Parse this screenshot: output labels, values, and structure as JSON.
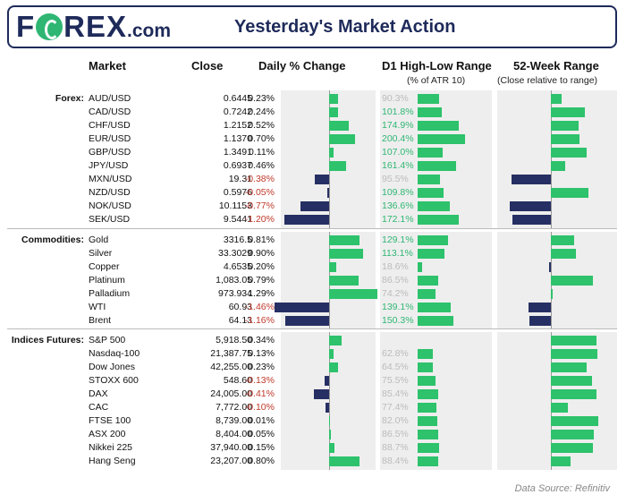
{
  "header": {
    "logo_pre": "F",
    "logo_post": "REX",
    "logo_suffix": ".com",
    "title": "Yesterday's Market Action"
  },
  "columns": {
    "market": "Market",
    "close": "Close",
    "daily": "Daily % Change",
    "range": "D1 High-Low Range",
    "range_sub": "(% of ATR 10)",
    "week52": "52-Week Range",
    "week52_sub": "(Close relative to range)"
  },
  "groups": [
    {
      "label": "Forex:",
      "rows": [
        {
          "market": "AUD/USD",
          "close": "0.6445",
          "change": "0.23%",
          "change_value": 0.23,
          "range": "90.3%",
          "range_value": 90.3,
          "week52": 0.2
        },
        {
          "market": "CAD/USD",
          "close": "0.7242",
          "change": "0.24%",
          "change_value": 0.24,
          "range": "101.8%",
          "range_value": 101.8,
          "week52": 0.62
        },
        {
          "market": "CHF/USD",
          "close": "1.2152",
          "change": "0.52%",
          "change_value": 0.52,
          "range": "174.9%",
          "range_value": 174.9,
          "week52": 0.5
        },
        {
          "market": "EUR/USD",
          "close": "1.1370",
          "change": "0.70%",
          "change_value": 0.7,
          "range": "200.4%",
          "range_value": 200.4,
          "week52": 0.52
        },
        {
          "market": "GBP/USD",
          "close": "1.3491",
          "change": "0.11%",
          "change_value": 0.11,
          "range": "107.0%",
          "range_value": 107.0,
          "week52": 0.64
        },
        {
          "market": "JPY/USD",
          "close": "0.6937",
          "change": "0.46%",
          "change_value": 0.46,
          "range": "161.4%",
          "range_value": 161.4,
          "week52": 0.26
        },
        {
          "market": "MXN/USD",
          "close": "19.31",
          "change": "-0.38%",
          "change_value": -0.38,
          "range": "95.5%",
          "range_value": 95.5,
          "week52": -0.71
        },
        {
          "market": "NZD/USD",
          "close": "0.5976",
          "change": "-0.05%",
          "change_value": -0.05,
          "range": "109.8%",
          "range_value": 109.8,
          "week52": 0.67
        },
        {
          "market": "NOK/USD",
          "close": "10.1153",
          "change": "-0.77%",
          "change_value": -0.77,
          "range": "136.6%",
          "range_value": 136.6,
          "week52": -0.74
        },
        {
          "market": "SEK/USD",
          "close": "9.5441",
          "change": "-1.20%",
          "change_value": -1.2,
          "range": "172.1%",
          "range_value": 172.1,
          "week52": -0.7
        }
      ]
    },
    {
      "label": "Commodities:",
      "rows": [
        {
          "market": "Gold",
          "close": "3316.5",
          "change": "0.81%",
          "change_value": 0.81,
          "range": "129.1%",
          "range_value": 129.1,
          "week52": 0.42
        },
        {
          "market": "Silver",
          "close": "33.3029",
          "change": "0.90%",
          "change_value": 0.9,
          "range": "113.1%",
          "range_value": 113.1,
          "week52": 0.45
        },
        {
          "market": "Copper",
          "close": "4.6535",
          "change": "0.20%",
          "change_value": 0.2,
          "range": "18.6%",
          "range_value": 18.6,
          "week52": -0.04
        },
        {
          "market": "Platinum",
          "close": "1,083.05",
          "change": "0.79%",
          "change_value": 0.79,
          "range": "86.5%",
          "range_value": 86.5,
          "week52": 0.75
        },
        {
          "market": "Palladium",
          "close": "973.934",
          "change": "1.29%",
          "change_value": 1.29,
          "range": "74.2%",
          "range_value": 74.2,
          "week52": 0.01
        },
        {
          "market": "WTI",
          "close": "60.93",
          "change": "-1.46%",
          "change_value": -1.46,
          "range": "139.1%",
          "range_value": 139.1,
          "week52": -0.4
        },
        {
          "market": "Brent",
          "close": "64.13",
          "change": "-1.16%",
          "change_value": -1.16,
          "range": "150.3%",
          "range_value": 150.3,
          "week52": -0.38
        }
      ]
    },
    {
      "label": "Indices Futures:",
      "rows": [
        {
          "market": "S&P 500",
          "close": "5,918.50",
          "change": "0.34%",
          "change_value": 0.34,
          "range": "",
          "range_value": 0,
          "week52": 0.82
        },
        {
          "market": "Nasdaq-100",
          "close": "21,387.75",
          "change": "0.13%",
          "change_value": 0.13,
          "range": "62.8%",
          "range_value": 62.8,
          "week52": 0.84
        },
        {
          "market": "Dow Jones",
          "close": "42,255.00",
          "change": "0.23%",
          "change_value": 0.23,
          "range": "64.5%",
          "range_value": 64.5,
          "week52": 0.64
        },
        {
          "market": "STOXX 600",
          "close": "548.60",
          "change": "-0.13%",
          "change_value": -0.13,
          "range": "75.5%",
          "range_value": 75.5,
          "week52": 0.74
        },
        {
          "market": "DAX",
          "close": "24,005.00",
          "change": "-0.41%",
          "change_value": -0.41,
          "range": "85.4%",
          "range_value": 85.4,
          "week52": 0.83
        },
        {
          "market": "CAC",
          "close": "7,772.00",
          "change": "-0.10%",
          "change_value": -0.1,
          "range": "77.4%",
          "range_value": 77.4,
          "week52": 0.3
        },
        {
          "market": "FTSE 100",
          "close": "8,739.00",
          "change": "0.01%",
          "change_value": 0.01,
          "range": "82.0%",
          "range_value": 82.0,
          "week52": 0.85
        },
        {
          "market": "ASX 200",
          "close": "8,404.00",
          "change": "0.05%",
          "change_value": 0.05,
          "range": "86.5%",
          "range_value": 86.5,
          "week52": 0.78
        },
        {
          "market": "Nikkei 225",
          "close": "37,940.00",
          "change": "0.15%",
          "change_value": 0.15,
          "range": "88.7%",
          "range_value": 88.7,
          "week52": 0.75
        },
        {
          "market": "Hang Seng",
          "close": "23,207.00",
          "change": "0.80%",
          "change_value": 0.8,
          "range": "88.4%",
          "range_value": 88.4,
          "week52": 0.35
        }
      ]
    }
  ],
  "footer": {
    "source": "Data Source: Refinitiv"
  },
  "colors": {
    "brand": "#1e2a5a",
    "positive": "#2dc26b",
    "negative": "#262f63",
    "neg_text": "#c0392b",
    "accent": "#2fb673"
  }
}
